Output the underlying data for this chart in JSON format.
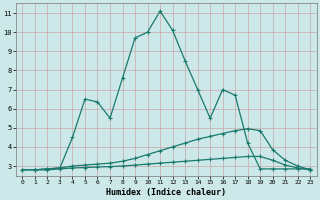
{
  "xlabel": "Humidex (Indice chaleur)",
  "background_color": "#cce8e8",
  "grid_color_major": "#c8a8a8",
  "grid_color_minor": "#ddc8c8",
  "line_color": "#1a7a6e",
  "xlim": [
    -0.5,
    23.5
  ],
  "ylim": [
    2.5,
    11.5
  ],
  "yticks": [
    3,
    4,
    5,
    6,
    7,
    8,
    9,
    10,
    11
  ],
  "xticks": [
    0,
    1,
    2,
    3,
    4,
    5,
    6,
    7,
    8,
    9,
    10,
    11,
    12,
    13,
    14,
    15,
    16,
    17,
    18,
    19,
    20,
    21,
    22,
    23
  ],
  "line_main_x": [
    1,
    2,
    3,
    4,
    5,
    6,
    7,
    8,
    9,
    10,
    11,
    12,
    13,
    14,
    15,
    16,
    17,
    18,
    19,
    20,
    21,
    22,
    23
  ],
  "line_main_y": [
    2.8,
    2.85,
    2.9,
    4.5,
    6.5,
    6.35,
    5.5,
    7.6,
    9.7,
    10.0,
    11.1,
    10.1,
    8.5,
    7.0,
    5.5,
    7.0,
    6.7,
    4.2,
    2.85,
    2.85,
    2.85,
    2.85,
    2.85
  ],
  "line_mid_x": [
    0,
    1,
    2,
    3,
    4,
    5,
    6,
    7,
    8,
    9,
    10,
    11,
    12,
    13,
    14,
    15,
    16,
    17,
    18,
    19,
    20,
    21,
    22,
    23
  ],
  "line_mid_y": [
    2.8,
    2.8,
    2.85,
    2.9,
    3.0,
    3.05,
    3.1,
    3.15,
    3.25,
    3.4,
    3.6,
    3.8,
    4.0,
    4.2,
    4.4,
    4.55,
    4.7,
    4.85,
    4.95,
    4.85,
    3.85,
    3.3,
    3.0,
    2.8
  ],
  "line_low_x": [
    0,
    1,
    2,
    3,
    4,
    5,
    6,
    7,
    8,
    9,
    10,
    11,
    12,
    13,
    14,
    15,
    16,
    17,
    18,
    19,
    20,
    21,
    22,
    23
  ],
  "line_low_y": [
    2.8,
    2.8,
    2.8,
    2.85,
    2.9,
    2.92,
    2.95,
    2.97,
    3.0,
    3.05,
    3.1,
    3.15,
    3.2,
    3.25,
    3.3,
    3.35,
    3.4,
    3.45,
    3.5,
    3.5,
    3.3,
    3.05,
    2.9,
    2.8
  ]
}
